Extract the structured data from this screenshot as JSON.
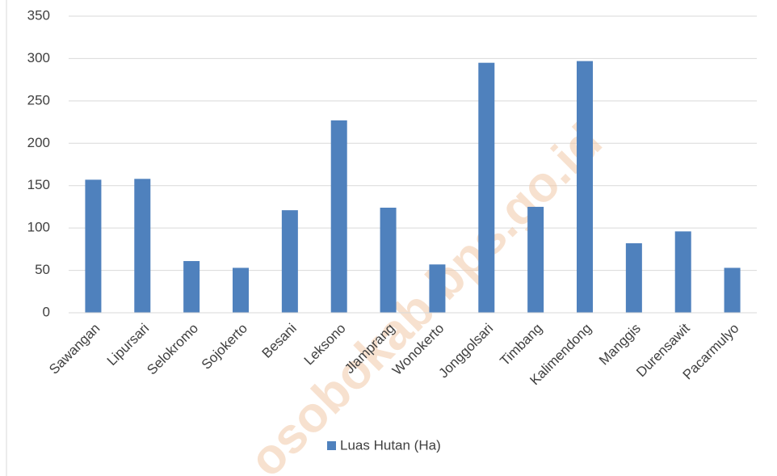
{
  "chart_data": {
    "type": "bar",
    "categories": [
      "Sawangan",
      "Lipursari",
      "Selokromo",
      "Sojokerto",
      "Besani",
      "Leksono",
      "Jlamprang",
      "Wonokerto",
      "Jonggolsari",
      "Timbang",
      "Kalimendong",
      "Manggis",
      "Durensawit",
      "Pacarmulyo"
    ],
    "series": [
      {
        "name": "Luas Hutan (Ha)",
        "color": "#4f81bd",
        "values": [
          157,
          158,
          61,
          53,
          121,
          227,
          124,
          57,
          295,
          125,
          297,
          82,
          96,
          53
        ]
      }
    ],
    "ylim": [
      0,
      350
    ],
    "yticks": [
      0,
      50,
      100,
      150,
      200,
      250,
      300,
      350
    ],
    "grid": true,
    "legend": "bottom",
    "watermark": "osobokab.bps.go.id"
  }
}
